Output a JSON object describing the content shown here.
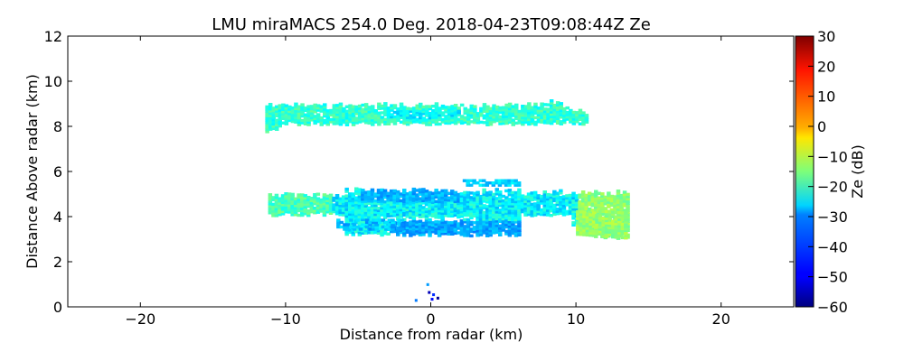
{
  "chart_data": {
    "type": "heatmap",
    "title": "LMU miraMACS 254.0 Deg. 2018-04-23T09:08:44Z  Ze",
    "xlabel": "Distance from radar (km)",
    "ylabel": "Distance Above radar  (km)",
    "xlim": [
      -25,
      25
    ],
    "ylim": [
      0,
      12
    ],
    "xticks": [
      -20,
      -10,
      0,
      10,
      20
    ],
    "xtick_labels": [
      "−20",
      "−10",
      "0",
      "10",
      "20"
    ],
    "yticks": [
      0,
      2,
      4,
      6,
      8,
      10,
      12
    ],
    "ytick_labels": [
      "0",
      "2",
      "4",
      "6",
      "8",
      "10",
      "12"
    ],
    "colorbar": {
      "label": "Ze (dB)",
      "range": [
        -60,
        30
      ],
      "ticks": [
        30,
        20,
        10,
        0,
        -10,
        -20,
        -30,
        -40,
        -50,
        -60
      ],
      "tick_labels": [
        "30",
        "20",
        "10",
        "0",
        "−10",
        "−20",
        "−30",
        "−40",
        "−50",
        "−60"
      ],
      "colormap": "jet"
    },
    "regions": [
      {
        "name": "upper-cloud-layer",
        "x_range": [
          -11.5,
          10.8
        ],
        "y_range": [
          7.7,
          9.1
        ],
        "ze_range": [
          -30,
          -15
        ]
      },
      {
        "name": "middle-cloud-layer",
        "x_range": [
          -11.2,
          13.5
        ],
        "y_range": [
          2.9,
          5.6
        ],
        "ze_range": [
          -40,
          -10
        ]
      },
      {
        "name": "near-ground-echo",
        "x_range": [
          -1.2,
          0.5
        ],
        "y_range": [
          0.2,
          1.0
        ],
        "ze_range": [
          -60,
          -40
        ]
      }
    ]
  }
}
